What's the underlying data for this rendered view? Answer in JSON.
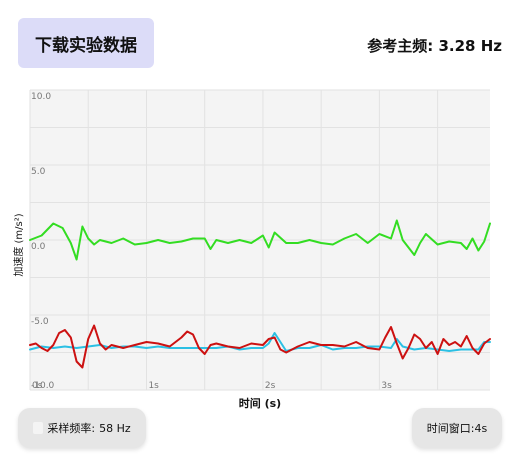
{
  "header": {
    "download_label": "下载实验数据",
    "ref_freq_label": "参考主频:",
    "ref_freq_value": "3.28 Hz"
  },
  "footer": {
    "sample_rate_label": "采样频率:",
    "sample_rate_value": "58 Hz",
    "window_label": "时间窗口:",
    "window_value": "4s"
  },
  "chart_data": {
    "type": "line",
    "xlabel": "时间 (s)",
    "ylabel": "加速度 (m/s²)",
    "xlim": [
      0,
      3.95
    ],
    "ylim": [
      -10.0,
      10.0
    ],
    "x_ticks": [
      0,
      1,
      2,
      3
    ],
    "x_tick_labels": [
      "0s",
      "1s",
      "2s",
      "3s"
    ],
    "y_ticks": [
      10.0,
      5.0,
      0.0,
      -5.0,
      -10.0
    ],
    "y_tick_labels": [
      "10.0",
      "5.0",
      "0.0",
      "-5.0",
      "-10.0"
    ],
    "grid": true,
    "series": [
      {
        "color": "#33dd22",
        "x": [
          0.0,
          0.1,
          0.2,
          0.28,
          0.35,
          0.4,
          0.45,
          0.5,
          0.55,
          0.6,
          0.7,
          0.8,
          0.9,
          1.0,
          1.1,
          1.2,
          1.3,
          1.4,
          1.5,
          1.55,
          1.6,
          1.7,
          1.8,
          1.9,
          2.0,
          2.05,
          2.1,
          2.2,
          2.3,
          2.4,
          2.5,
          2.6,
          2.7,
          2.8,
          2.9,
          3.0,
          3.1,
          3.15,
          3.2,
          3.3,
          3.35,
          3.4,
          3.5,
          3.6,
          3.7,
          3.75,
          3.8,
          3.85,
          3.9,
          3.95
        ],
        "y": [
          0.0,
          0.3,
          1.1,
          0.8,
          -0.2,
          -1.3,
          0.9,
          0.1,
          -0.3,
          0.0,
          -0.2,
          0.1,
          -0.3,
          -0.2,
          0.0,
          -0.2,
          -0.1,
          0.1,
          0.1,
          -0.6,
          0.0,
          -0.2,
          0.0,
          -0.2,
          0.3,
          -0.5,
          0.5,
          -0.2,
          -0.2,
          0.0,
          -0.2,
          -0.3,
          0.1,
          0.4,
          -0.2,
          0.4,
          0.1,
          1.3,
          0.0,
          -1.0,
          -0.2,
          0.4,
          -0.3,
          -0.1,
          -0.2,
          -0.6,
          0.1,
          -0.7,
          -0.1,
          1.1
        ]
      },
      {
        "color": "#2bc0e4",
        "x": [
          0.0,
          0.1,
          0.2,
          0.3,
          0.4,
          0.5,
          0.6,
          0.7,
          0.8,
          0.9,
          1.0,
          1.1,
          1.2,
          1.3,
          1.4,
          1.5,
          1.6,
          1.7,
          1.8,
          1.9,
          2.0,
          2.05,
          2.1,
          2.2,
          2.3,
          2.4,
          2.5,
          2.6,
          2.7,
          2.8,
          2.9,
          3.0,
          3.1,
          3.15,
          3.2,
          3.3,
          3.4,
          3.5,
          3.6,
          3.7,
          3.8,
          3.85,
          3.9,
          3.95
        ],
        "y": [
          -7.3,
          -7.1,
          -7.2,
          -7.1,
          -7.2,
          -7.1,
          -7.0,
          -7.2,
          -7.1,
          -7.1,
          -7.2,
          -7.1,
          -7.2,
          -7.2,
          -7.2,
          -7.2,
          -7.2,
          -7.1,
          -7.3,
          -7.2,
          -7.2,
          -6.9,
          -6.2,
          -7.4,
          -7.2,
          -7.2,
          -7.0,
          -7.3,
          -7.2,
          -7.2,
          -7.1,
          -7.1,
          -7.2,
          -6.6,
          -7.1,
          -7.3,
          -7.2,
          -7.3,
          -7.4,
          -7.3,
          -7.3,
          -7.3,
          -6.8,
          -6.8
        ]
      },
      {
        "color": "#cc1111",
        "x": [
          0.0,
          0.05,
          0.1,
          0.15,
          0.2,
          0.25,
          0.3,
          0.35,
          0.4,
          0.45,
          0.5,
          0.55,
          0.6,
          0.65,
          0.7,
          0.8,
          0.9,
          1.0,
          1.1,
          1.2,
          1.3,
          1.35,
          1.4,
          1.45,
          1.5,
          1.55,
          1.6,
          1.7,
          1.8,
          1.9,
          2.0,
          2.05,
          2.1,
          2.15,
          2.2,
          2.3,
          2.4,
          2.5,
          2.6,
          2.7,
          2.8,
          2.9,
          3.0,
          3.05,
          3.1,
          3.15,
          3.2,
          3.25,
          3.3,
          3.35,
          3.4,
          3.45,
          3.5,
          3.55,
          3.6,
          3.65,
          3.7,
          3.75,
          3.8,
          3.85,
          3.9,
          3.95
        ],
        "y": [
          -7.0,
          -6.9,
          -7.2,
          -7.4,
          -7.0,
          -6.2,
          -6.0,
          -6.5,
          -8.1,
          -8.5,
          -6.6,
          -5.7,
          -6.9,
          -7.3,
          -7.0,
          -7.2,
          -7.0,
          -6.8,
          -6.9,
          -7.1,
          -6.5,
          -6.1,
          -6.3,
          -7.2,
          -7.6,
          -7.0,
          -6.9,
          -7.1,
          -7.2,
          -6.9,
          -7.0,
          -6.6,
          -6.5,
          -7.3,
          -7.5,
          -7.1,
          -6.8,
          -7.0,
          -7.0,
          -7.1,
          -6.8,
          -7.2,
          -7.3,
          -6.5,
          -5.8,
          -6.9,
          -7.9,
          -7.2,
          -6.3,
          -6.6,
          -7.2,
          -6.8,
          -7.6,
          -6.6,
          -7.0,
          -6.8,
          -7.1,
          -6.4,
          -7.2,
          -7.6,
          -6.9,
          -6.6
        ]
      }
    ]
  }
}
